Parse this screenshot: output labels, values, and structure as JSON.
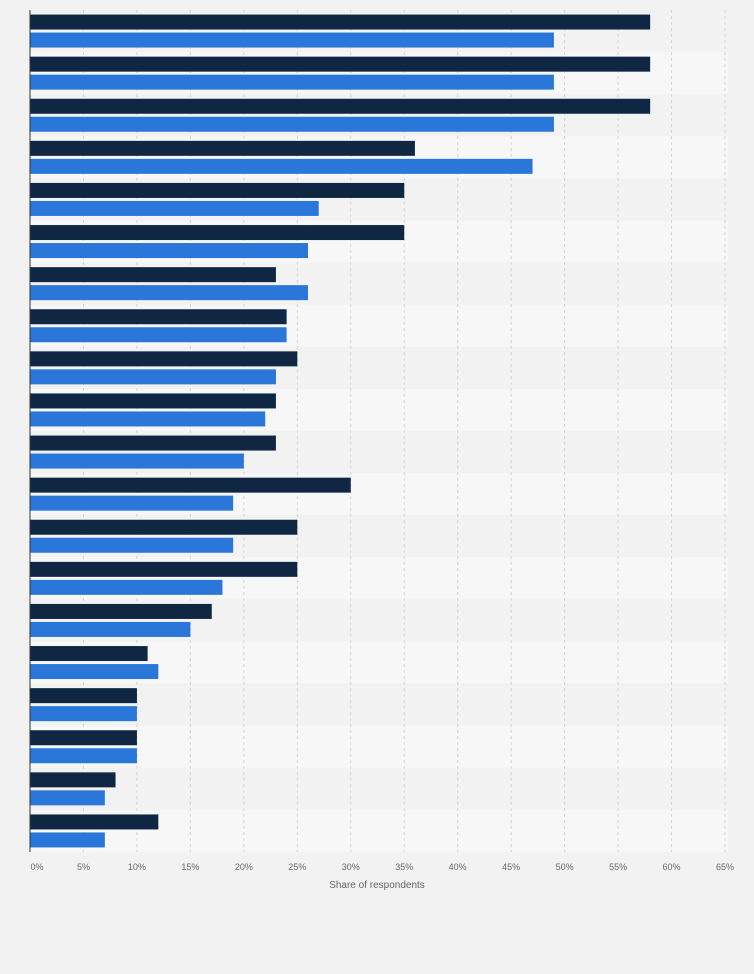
{
  "chart_data": {
    "type": "bar",
    "orientation": "horizontal",
    "categories": [
      "",
      "",
      "",
      "",
      "",
      "",
      "",
      "",
      "",
      "",
      "",
      "",
      "",
      "",
      "",
      "",
      "",
      "",
      "",
      ""
    ],
    "series": [
      {
        "values": [
          58,
          58,
          58,
          36,
          35,
          35,
          23,
          24,
          25,
          23,
          23,
          30,
          25,
          25,
          17,
          11,
          10,
          10,
          8,
          12
        ]
      },
      {
        "values": [
          49,
          49,
          49,
          47,
          27,
          26,
          26,
          24,
          23,
          22,
          20,
          19,
          19,
          18,
          15,
          12,
          10,
          10,
          7,
          7
        ]
      }
    ],
    "xlabel": "Share of respondents",
    "ylabel": "",
    "xlim": [
      0,
      65
    ],
    "xticks": [
      "0%",
      "5%",
      "10%",
      "15%",
      "20%",
      "25%",
      "30%",
      "35%",
      "40%",
      "45%",
      "50%",
      "55%",
      "60%",
      "65%"
    ],
    "grid": "vertical dashed",
    "legend": "none",
    "colors": {
      "series_1": "#0f2742",
      "series_2": "#2a76d9",
      "background": "#f2f2f2",
      "band_light": "#f7f7f7",
      "band_dark": "#f2f2f2",
      "gridline": "#d4d4d4",
      "axis": "#333333",
      "tick_text": "#666666"
    }
  }
}
